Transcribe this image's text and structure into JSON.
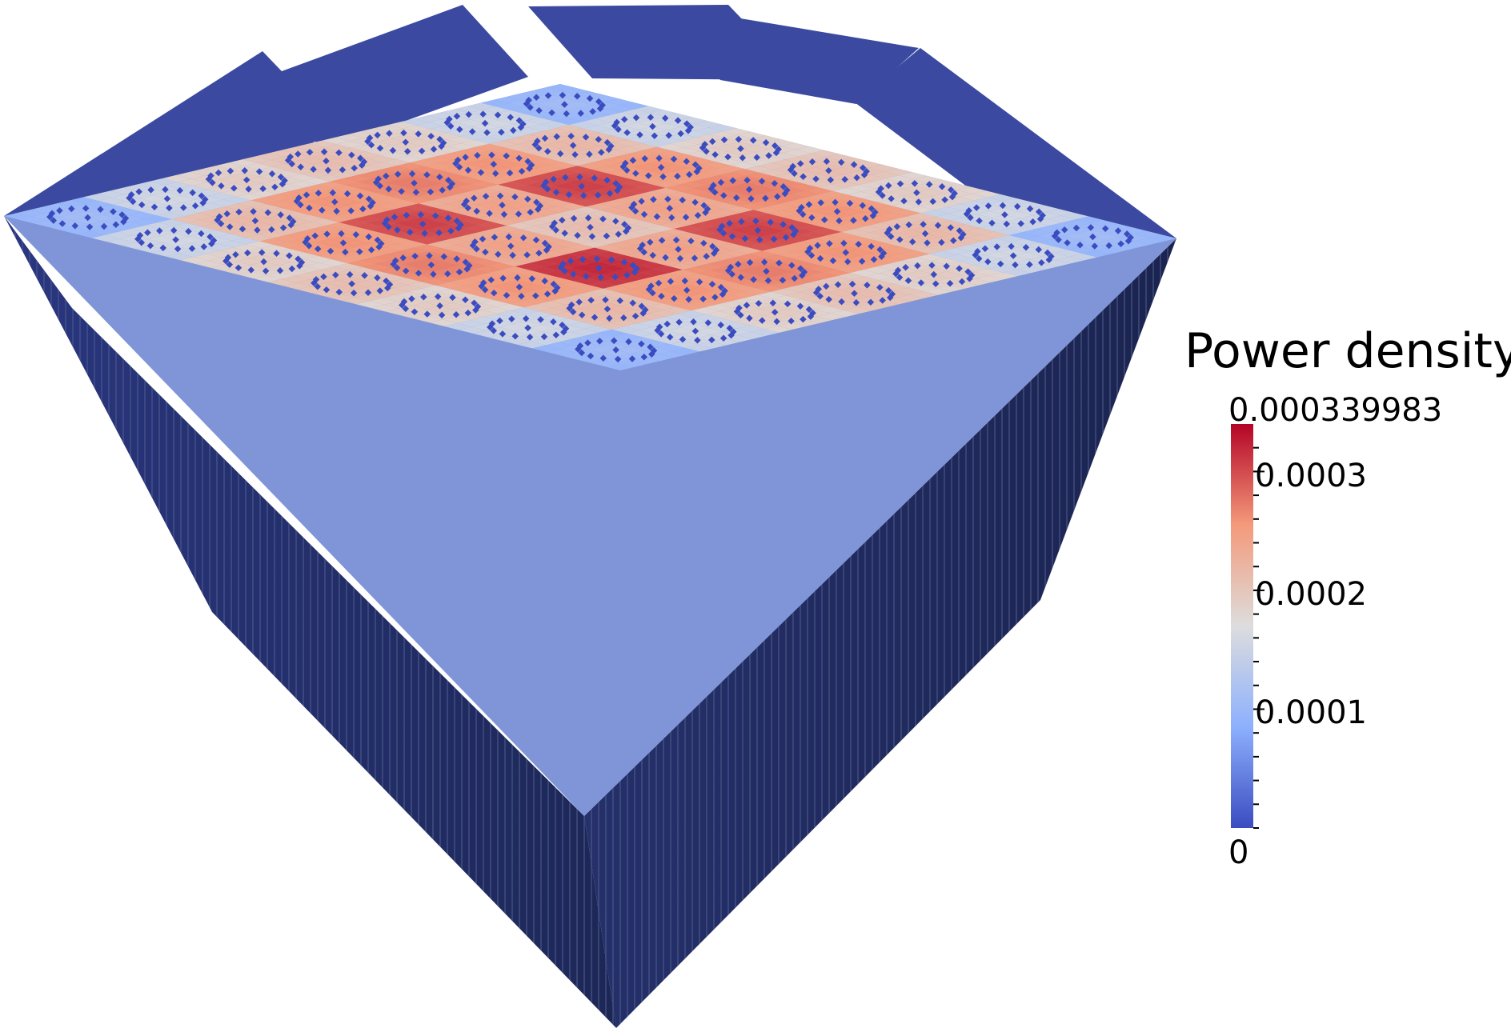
{
  "colorbar": {
    "title": "Power density",
    "max_label": "0.000339983",
    "min_label": "0",
    "range": [
      0,
      0.000339983
    ],
    "tick_labels": [
      "0.0003",
      "0.0002",
      "0.0001"
    ],
    "tick_values": [
      0.0003,
      0.0002,
      0.0001
    ],
    "minor_tick_step": 2e-05,
    "colormap": "cool-to-warm",
    "colors": {
      "low": "#3b4cc0",
      "mid": "#dddddd",
      "high": "#b40426"
    }
  },
  "core": {
    "assemblies_per_side": 7,
    "assembly_power_levels": [
      [
        0.3,
        0.45,
        0.55,
        0.6,
        0.55,
        0.45,
        0.3
      ],
      [
        0.45,
        0.62,
        0.74,
        0.78,
        0.74,
        0.62,
        0.45
      ],
      [
        0.55,
        0.74,
        0.88,
        0.7,
        0.88,
        0.74,
        0.55
      ],
      [
        0.6,
        0.78,
        0.7,
        0.6,
        0.7,
        0.78,
        0.6
      ],
      [
        0.55,
        0.74,
        0.88,
        0.7,
        0.92,
        0.74,
        0.55
      ],
      [
        0.45,
        0.62,
        0.74,
        0.78,
        0.74,
        0.62,
        0.45
      ],
      [
        0.3,
        0.45,
        0.55,
        0.6,
        0.55,
        0.45,
        0.3
      ]
    ],
    "reflector_color": "#3b4aa0",
    "side_color": "#1e2858"
  }
}
